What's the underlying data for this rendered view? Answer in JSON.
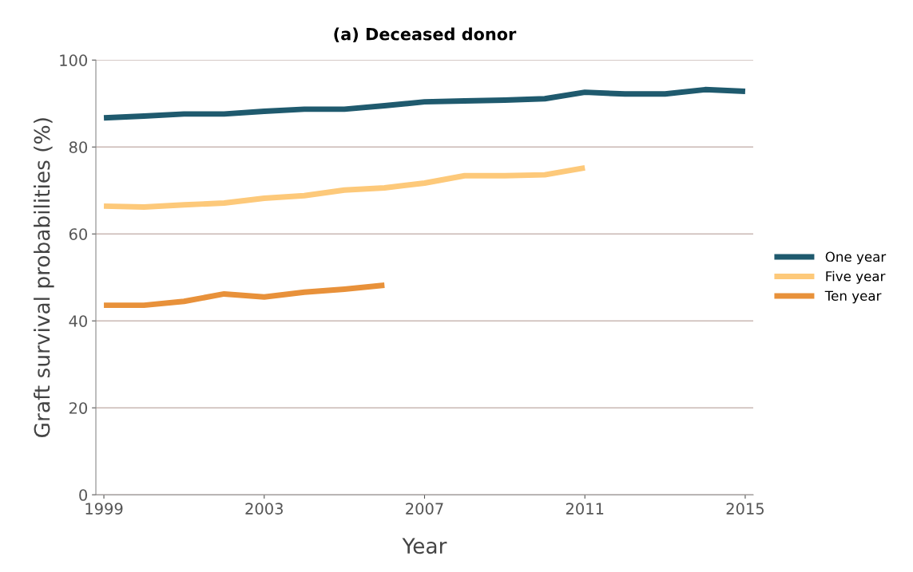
{
  "chart_data": {
    "type": "line",
    "title": "(a) Deceased donor",
    "xlabel": "Year",
    "ylabel": "Graft survival probabilities (%)",
    "x": [
      1999,
      2000,
      2001,
      2002,
      2003,
      2004,
      2005,
      2006,
      2007,
      2008,
      2009,
      2010,
      2011,
      2012,
      2013,
      2014,
      2015
    ],
    "series": [
      {
        "name": "One year",
        "color": "#1f5a6e",
        "values": [
          86.7,
          87.1,
          87.6,
          87.6,
          88.2,
          88.7,
          88.7,
          89.5,
          90.4,
          90.6,
          90.8,
          91.1,
          92.6,
          92.2,
          92.2,
          93.2,
          92.8
        ]
      },
      {
        "name": "Five year",
        "color": "#fdc97a",
        "values": [
          66.4,
          66.2,
          66.7,
          67.1,
          68.2,
          68.8,
          70.1,
          70.6,
          71.7,
          73.4,
          73.4,
          73.6,
          75.2,
          null,
          null,
          null,
          null
        ]
      },
      {
        "name": "Ten year",
        "color": "#e8913a",
        "values": [
          43.6,
          43.6,
          44.5,
          46.2,
          45.5,
          46.6,
          47.3,
          48.2,
          null,
          null,
          null,
          null,
          null,
          null,
          null,
          null,
          null
        ]
      }
    ],
    "xlim": [
      1998.8,
      2015.2
    ],
    "xticks": [
      1999,
      2003,
      2007,
      2011,
      2015
    ],
    "ylim": [
      0,
      100
    ],
    "yticks": [
      0,
      20,
      40,
      60,
      80,
      100
    ],
    "grid": "y",
    "legend": "right",
    "line_style": "solid",
    "marker": "none"
  }
}
